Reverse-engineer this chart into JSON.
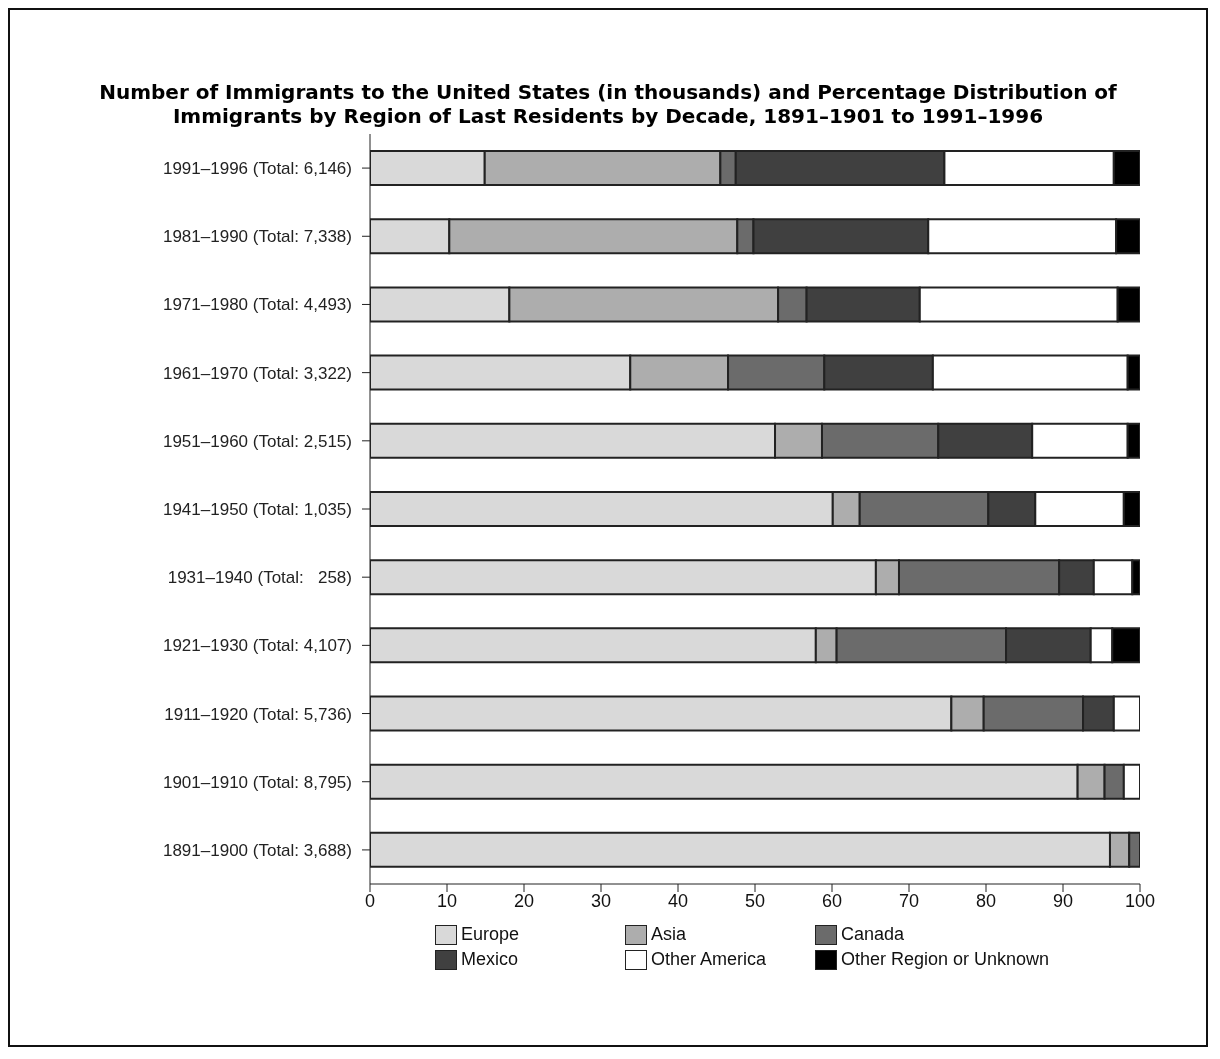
{
  "chart_data": {
    "type": "bar",
    "orientation": "horizontal",
    "stacked": true,
    "title": "Number of Immigrants to the United States (in thousands) and Percentage Distribution of Immigrants by Region of Last Residents by Decade, 1891–1901 to 1991–1996",
    "categories": [
      "1991–1996 (Total: 6,146)",
      "1981–1990 (Total: 7,338)",
      "1971–1980 (Total: 4,493)",
      "1961–1970 (Total: 3,322)",
      "1951–1960 (Total: 2,515)",
      "1941–1950 (Total: 1,035)",
      "1931–1940 (Total:   258)",
      "1921–1930 (Total: 4,107)",
      "1911–1920 (Total: 5,736)",
      "1901–1910 (Total: 8,795)",
      "1891–1900 (Total: 3,688)"
    ],
    "series": [
      {
        "name": "Europe",
        "color": "#d9d9d9",
        "values": [
          14.9,
          10.3,
          18.1,
          33.8,
          52.6,
          60.1,
          65.7,
          57.9,
          75.5,
          91.9,
          96.1
        ]
      },
      {
        "name": "Asia",
        "color": "#adadad",
        "values": [
          30.6,
          37.4,
          34.9,
          12.7,
          6.1,
          3.5,
          3.0,
          2.7,
          4.2,
          3.5,
          2.5
        ]
      },
      {
        "name": "Canada",
        "color": "#6b6b6b",
        "values": [
          2.0,
          2.1,
          3.7,
          12.5,
          15.1,
          16.7,
          20.8,
          22.0,
          12.9,
          2.5,
          1.4
        ]
      },
      {
        "name": "Mexico",
        "color": "#404040",
        "values": [
          27.1,
          22.7,
          14.7,
          14.1,
          12.2,
          6.1,
          4.5,
          11.0,
          4.0,
          0,
          0
        ]
      },
      {
        "name": "Other America",
        "color": "#ffffff",
        "values": [
          22.0,
          24.4,
          25.7,
          25.3,
          12.4,
          11.5,
          5.0,
          2.8,
          3.4,
          2.1,
          0
        ]
      },
      {
        "name": "Other Region or Unknown",
        "color": "#000000",
        "values": [
          3.4,
          3.1,
          2.9,
          1.6,
          1.6,
          2.1,
          1.0,
          3.6,
          0,
          0,
          0
        ]
      }
    ],
    "xlim": [
      0,
      100
    ],
    "xticks": [
      0,
      10,
      20,
      30,
      40,
      50,
      60,
      70,
      80,
      90,
      100
    ],
    "grid": false,
    "legend": "bottom"
  }
}
